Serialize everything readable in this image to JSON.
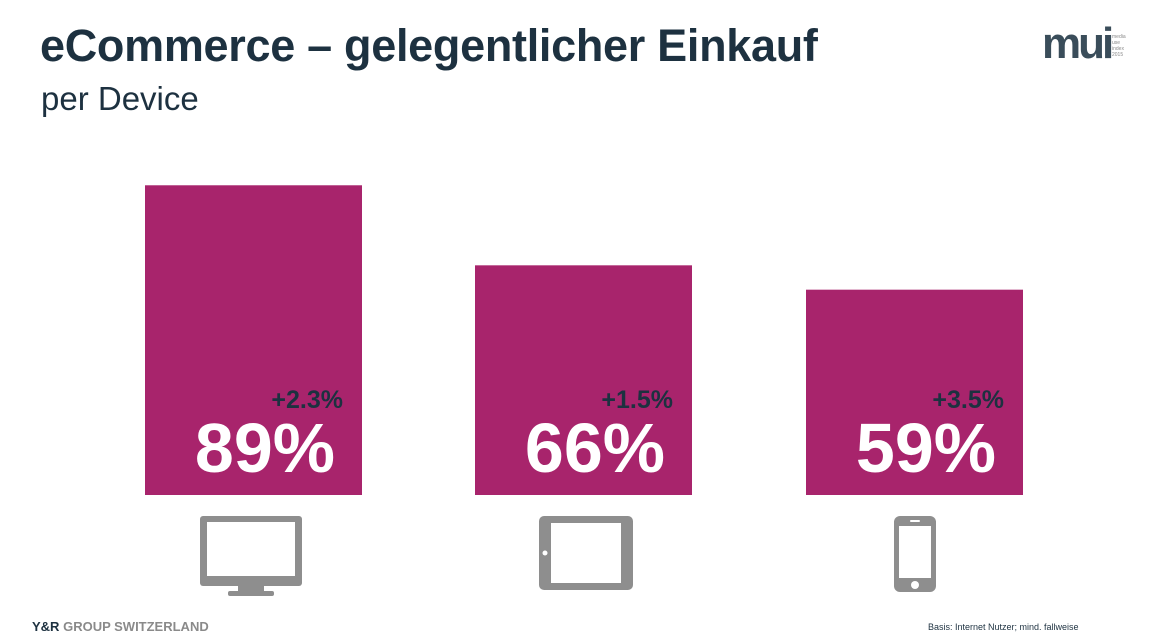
{
  "header": {
    "title": "eCommerce – gelegentlicher Einkauf",
    "subtitle": "per Device"
  },
  "logo": {
    "word": "mui",
    "small_lines": [
      "media",
      "use",
      "index",
      "2015"
    ]
  },
  "chart_data": {
    "type": "bar",
    "categories": [
      "Desktop",
      "Tablet",
      "Smartphone"
    ],
    "values": [
      89,
      66,
      59
    ],
    "value_labels": [
      "89%",
      "66%",
      "59%"
    ],
    "change_labels": [
      "+2.3%",
      "+1.5%",
      "+3.5%"
    ],
    "title": "eCommerce – gelegentlicher Einkauf",
    "subtitle": "per Device",
    "ylim": [
      0,
      100
    ],
    "grid": false,
    "colors": {
      "bar": "#a8246c",
      "value_text": "#ffffff",
      "change_text": "#1d3140"
    }
  },
  "icons": [
    "desktop-monitor-icon",
    "tablet-icon",
    "smartphone-icon"
  ],
  "footer": {
    "brand_bold": "Y&R",
    "brand_rest": "GROUP SWITZERLAND",
    "note": "Basis: Internet Nutzer; mind. fallweise"
  }
}
